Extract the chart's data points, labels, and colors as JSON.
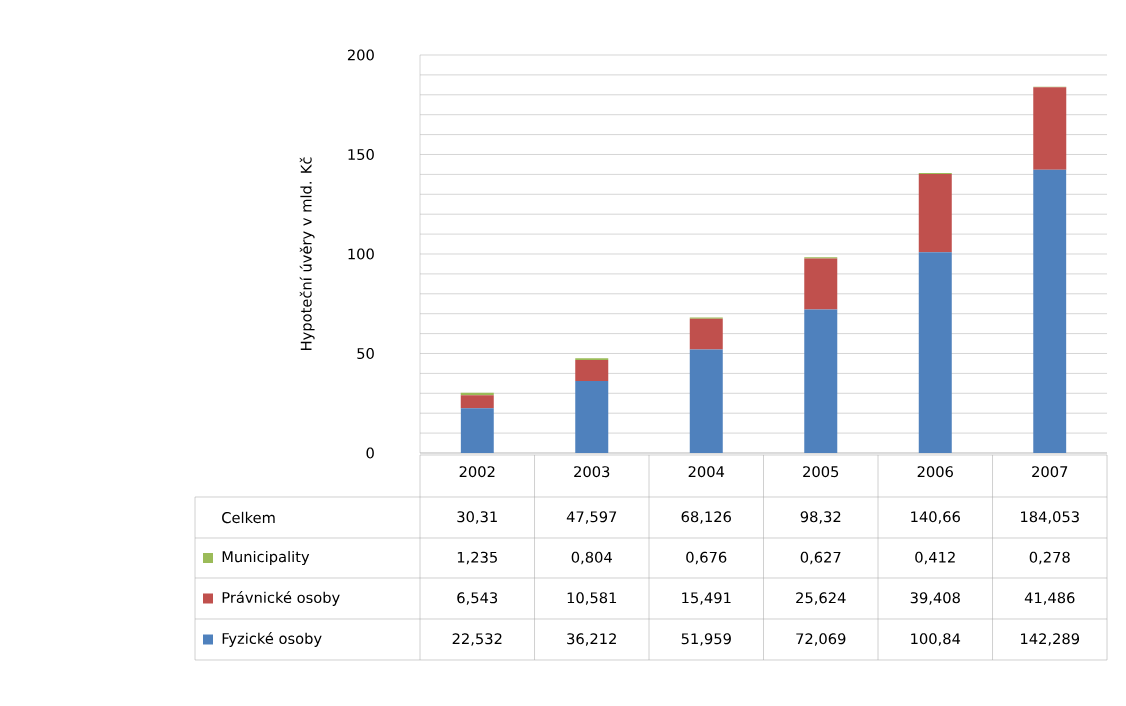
{
  "chart_data": {
    "type": "bar",
    "stacked": true,
    "ylabel": "Hypoteční úvěry v mld. Kč",
    "categories": [
      "2002",
      "2003",
      "2004",
      "2005",
      "2006",
      "2007"
    ],
    "series": [
      {
        "name": "Fyzické osoby",
        "color": "#4f81bd",
        "values": [
          22.532,
          36.212,
          51.959,
          72.069,
          100.84,
          142.289
        ],
        "value_labels": [
          "22,532",
          "36,212",
          "51,959",
          "72,069",
          "100,84",
          "142,289"
        ]
      },
      {
        "name": "Právnické osoby",
        "color": "#c0504d",
        "values": [
          6.543,
          10.581,
          15.491,
          25.624,
          39.408,
          41.486
        ],
        "value_labels": [
          "6,543",
          "10,581",
          "15,491",
          "25,624",
          "39,408",
          "41,486"
        ]
      },
      {
        "name": "Municipality",
        "color": "#9bbb59",
        "values": [
          1.235,
          0.804,
          0.676,
          0.627,
          0.412,
          0.278
        ],
        "value_labels": [
          "1,235",
          "0,804",
          "0,676",
          "0,627",
          "0,412",
          "0,278"
        ]
      }
    ],
    "annotations": [
      "Celkem",
      "30,31",
      "47,597",
      "68,126",
      "98,32",
      "140,66",
      "184,053"
    ],
    "ylim": [
      0,
      200
    ],
    "yticks": [
      0,
      {
        "value": 10,
        "label": null
      },
      {
        "value": 20,
        "label": null
      },
      {
        "value": 30,
        "label": null
      },
      {
        "value": 40,
        "label": null
      },
      50,
      {
        "value": 60,
        "label": null
      },
      {
        "value": 70,
        "label": null
      },
      {
        "value": 80,
        "label": null
      },
      {
        "value": 90,
        "label": null
      },
      100,
      {
        "value": 110,
        "label": null
      },
      {
        "value": 120,
        "label": null
      },
      {
        "value": 130,
        "label": null
      },
      {
        "value": 140,
        "label": null
      },
      150,
      {
        "value": 160,
        "label": null
      },
      {
        "value": 170,
        "label": null
      },
      {
        "value": 180,
        "label": null
      },
      {
        "value": 190,
        "label": null
      },
      200
    ],
    "grid": "y",
    "legend": "bottom"
  }
}
